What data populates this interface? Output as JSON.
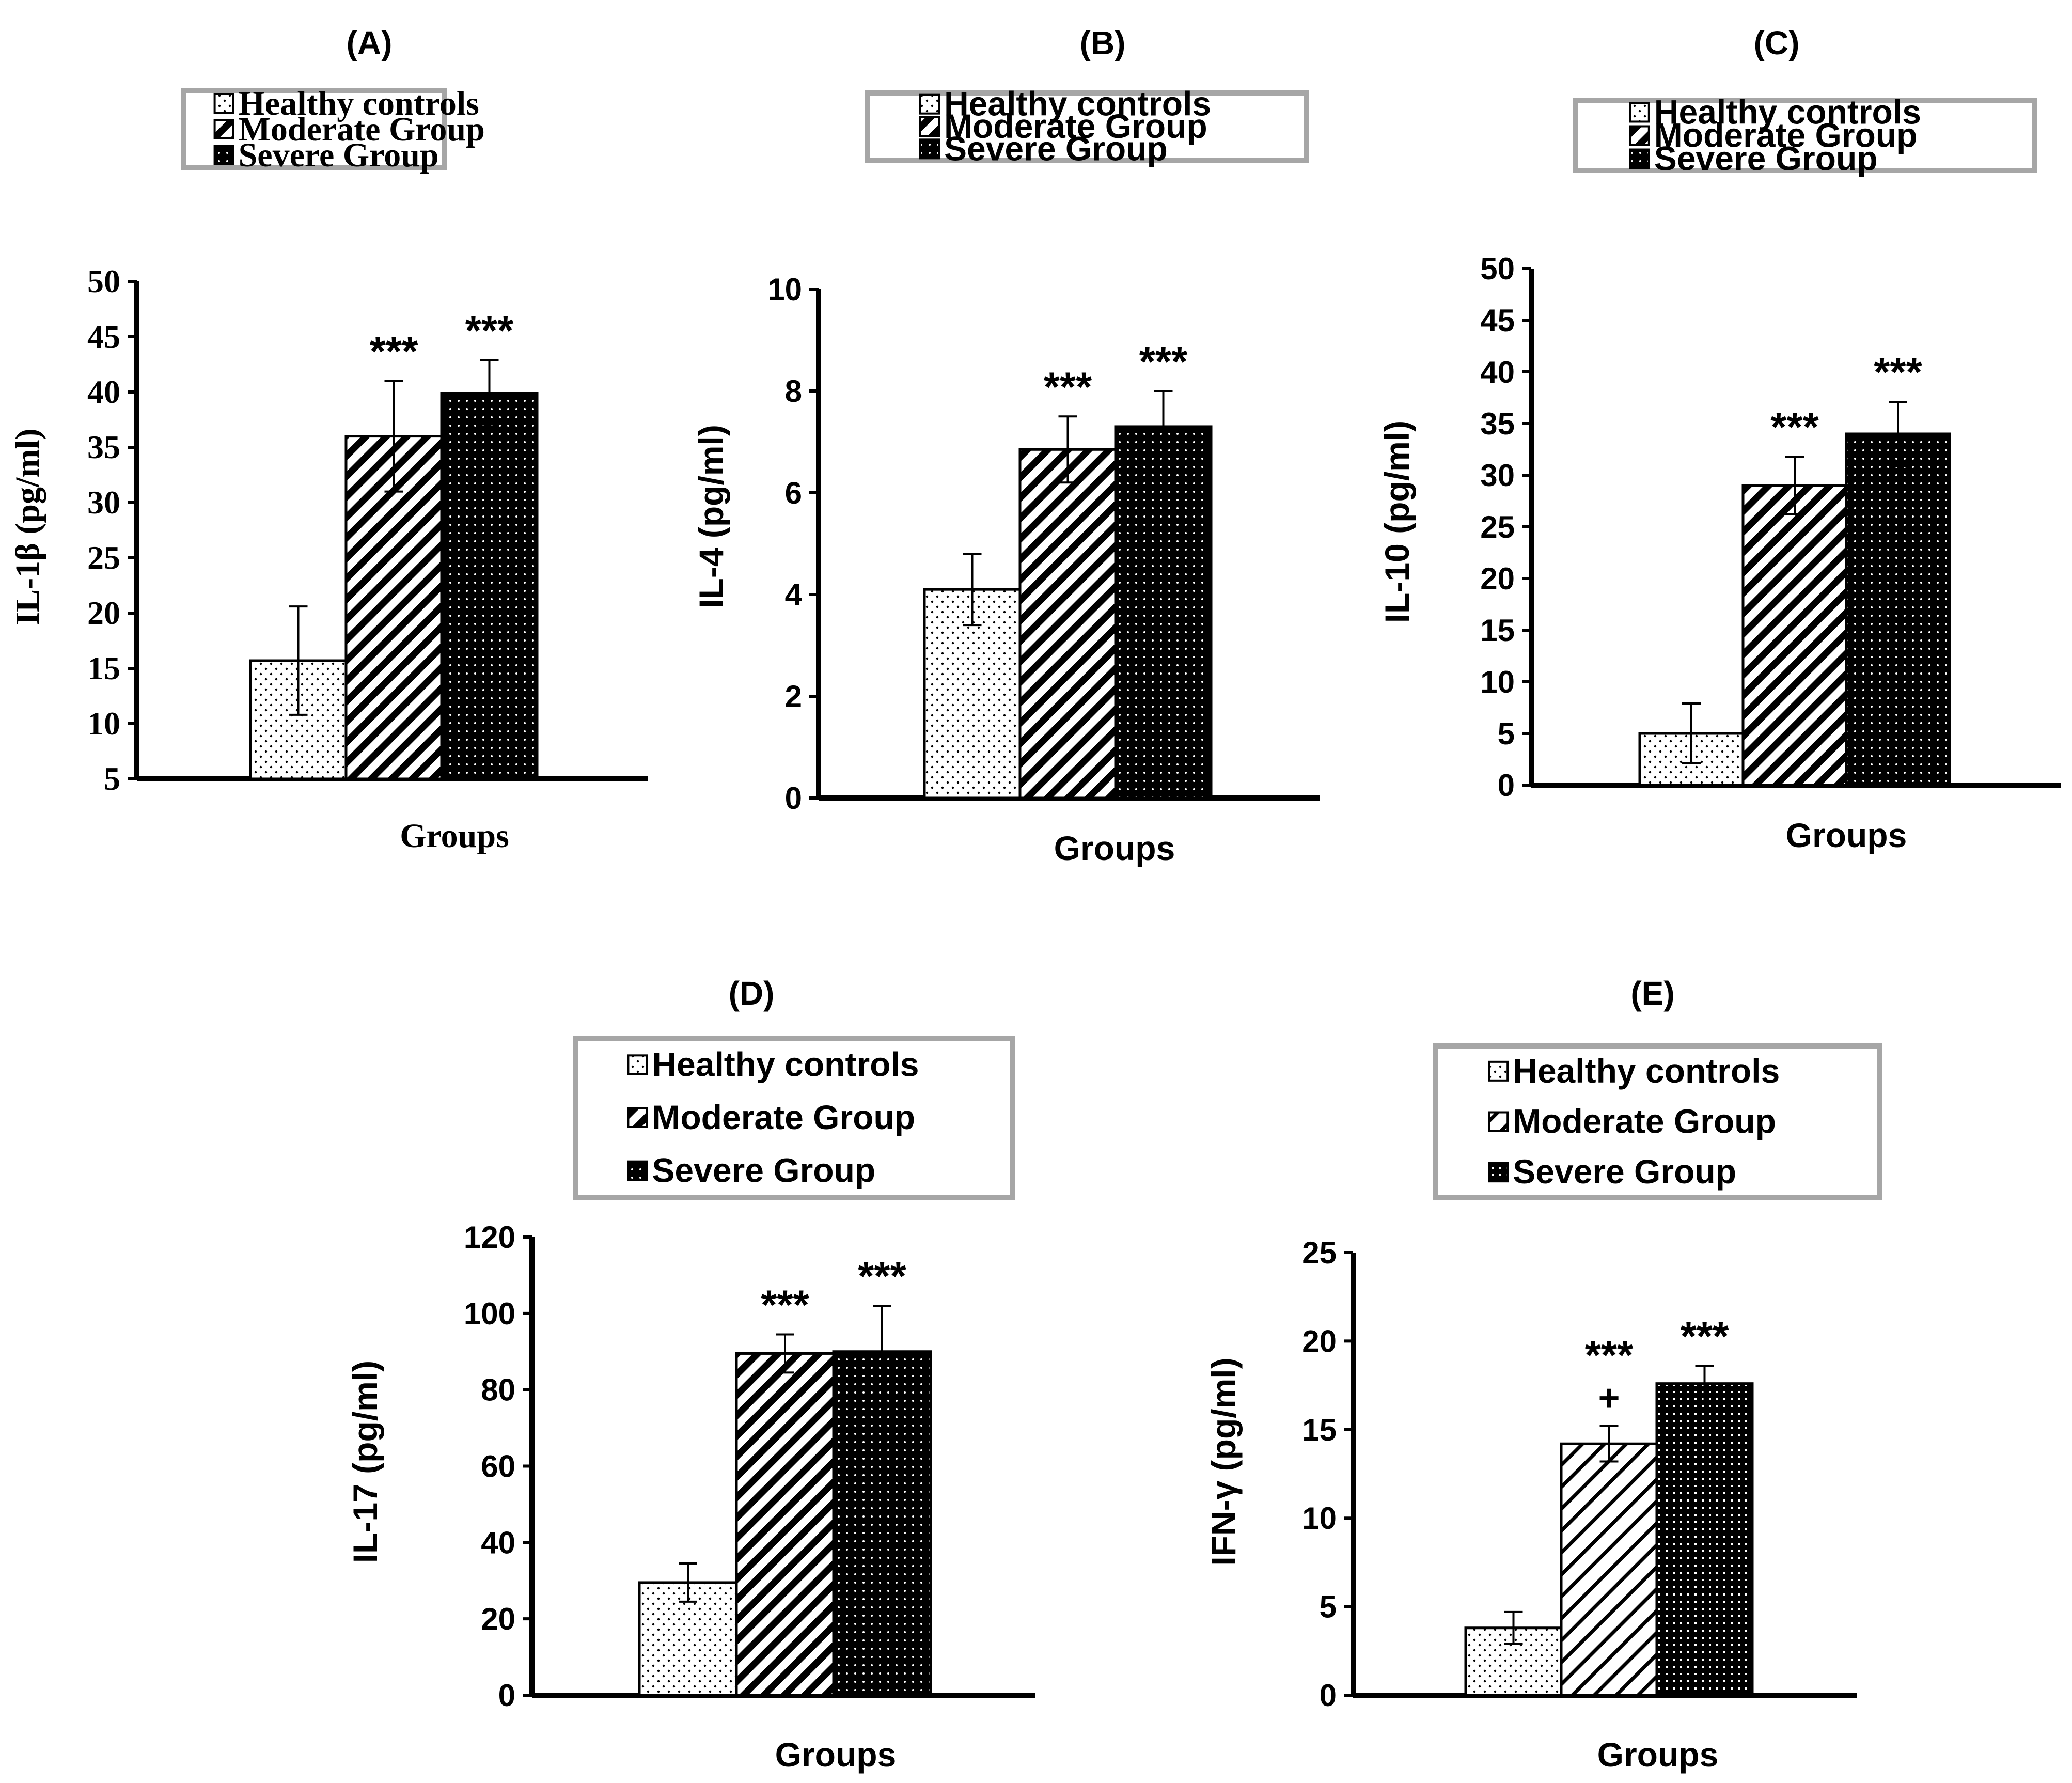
{
  "figure": {
    "legend_entries": [
      "Healthy controls",
      "Moderate Group",
      "Severe Group"
    ],
    "colors": {
      "axis": "#000000",
      "legend_border": "#a6a6a6",
      "bar_dark": "#000000",
      "bar_light": "#ffffff"
    }
  },
  "chart_data": [
    {
      "type": "bar",
      "panel": "(A)",
      "title": "(A)",
      "xlabel": "Groups",
      "ylabel": "IL-1β (pg/ml)",
      "ylim": [
        5,
        50
      ],
      "ytick_step": 5,
      "font": "serif",
      "categories": [
        "Healthy controls",
        "Moderate Group",
        "Severe Group"
      ],
      "values": [
        15.7,
        36.0,
        39.9
      ],
      "errors": [
        4.9,
        5.0,
        3.0
      ],
      "annotations": [
        "",
        "***",
        "***"
      ],
      "annotations2": [
        "",
        "",
        ""
      ],
      "legend": [
        "Healthy controls",
        "Moderate Group",
        "Severe Group"
      ]
    },
    {
      "type": "bar",
      "panel": "(B)",
      "title": "(B)",
      "xlabel": "Groups",
      "ylabel": "IL-4 (pg/ml)",
      "ylim": [
        0,
        10
      ],
      "ytick_step": 2,
      "font": "sans",
      "categories": [
        "Healthy controls",
        "Moderate Group",
        "Severe Group"
      ],
      "values": [
        4.1,
        6.85,
        7.3
      ],
      "errors": [
        0.7,
        0.65,
        0.7
      ],
      "annotations": [
        "",
        "***",
        "***"
      ],
      "annotations2": [
        "",
        "",
        ""
      ],
      "legend": [
        "Healthy controls",
        "Moderate Group",
        "Severe Group"
      ]
    },
    {
      "type": "bar",
      "panel": "(C)",
      "title": "(C)",
      "xlabel": "Groups",
      "ylabel": "IL-10 (pg/ml)",
      "ylim": [
        0,
        50
      ],
      "ytick_step": 5,
      "font": "sans",
      "categories": [
        "Healthy controls",
        "Moderate Group",
        "Severe Group"
      ],
      "values": [
        5.0,
        29.0,
        34.0
      ],
      "errors": [
        2.9,
        2.8,
        3.1
      ],
      "annotations": [
        "",
        "***",
        "***"
      ],
      "annotations2": [
        "",
        "",
        ""
      ],
      "legend": [
        "Healthy controls",
        "Moderate Group",
        "Severe Group"
      ]
    },
    {
      "type": "bar",
      "panel": "(D)",
      "title": "(D)",
      "xlabel": "Groups",
      "ylabel": "IL-17 (pg/ml)",
      "ylim": [
        0,
        120
      ],
      "ytick_step": 20,
      "font": "sans",
      "categories": [
        "Healthy controls",
        "Moderate Group",
        "Severe Group"
      ],
      "values": [
        29.5,
        89.5,
        90.0
      ],
      "errors": [
        5.0,
        5.0,
        12.0
      ],
      "annotations": [
        "",
        "***",
        "***"
      ],
      "annotations2": [
        "",
        "",
        ""
      ],
      "legend": [
        "Healthy controls",
        "Moderate Group",
        "Severe Group"
      ]
    },
    {
      "type": "bar",
      "panel": "(E)",
      "title": "(E)",
      "xlabel": "Groups",
      "ylabel": "IFN-γ (pg/ml)",
      "ylim": [
        0,
        25
      ],
      "ytick_step": 5,
      "font": "sans",
      "categories": [
        "Healthy controls",
        "Moderate Group",
        "Severe Group"
      ],
      "values": [
        3.8,
        14.2,
        17.6
      ],
      "errors": [
        0.9,
        1.0,
        1.0
      ],
      "annotations": [
        "",
        "***",
        "***"
      ],
      "annotations2": [
        "",
        "+",
        ""
      ],
      "legend": [
        "Healthy controls",
        "Moderate Group",
        "Severe Group"
      ]
    }
  ]
}
